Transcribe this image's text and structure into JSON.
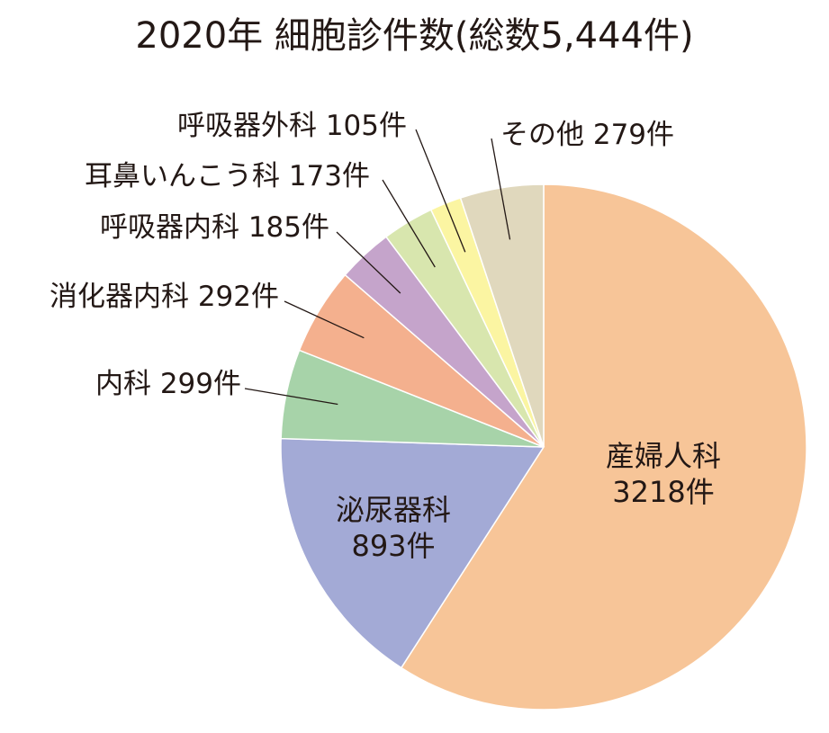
{
  "chart_data": {
    "type": "pie",
    "title": "2020年 細胞診件数(総数5,444件)",
    "unit": "件",
    "slices": [
      {
        "name": "産婦人科",
        "value": 3218,
        "label": "3218件",
        "color": "#f7c598"
      },
      {
        "name": "泌尿器科",
        "value": 893,
        "label": "893件",
        "color": "#a3aad6"
      },
      {
        "name": "内科",
        "value": 299,
        "label": "299件",
        "color": "#a7d3a9"
      },
      {
        "name": "消化器内科",
        "value": 292,
        "label": "292件",
        "color": "#f4b08e"
      },
      {
        "name": "呼吸器内科",
        "value": 185,
        "label": "185件",
        "color": "#c5a4cb"
      },
      {
        "name": "耳鼻いんこう科",
        "value": 173,
        "label": "173件",
        "color": "#d8e6ae"
      },
      {
        "name": "呼吸器外科",
        "value": 105,
        "label": "105件",
        "color": "#fbf5a2"
      },
      {
        "name": "その他",
        "value": 279,
        "label": "279件",
        "color": "#e0d8bd"
      }
    ]
  }
}
